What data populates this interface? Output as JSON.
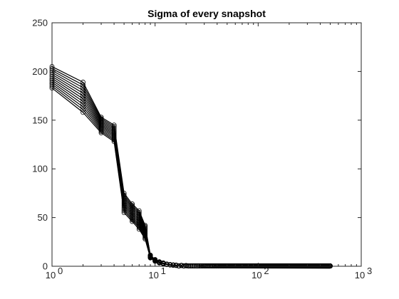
{
  "chart_data": {
    "type": "line",
    "title": "Sigma of every snapshot",
    "xlabel": "",
    "ylabel": "",
    "xscale": "log",
    "xlim": [
      1,
      1000
    ],
    "ylim": [
      0,
      250
    ],
    "x_ticks": [
      1,
      10,
      100,
      1000
    ],
    "x_tick_labels": [
      {
        "base": "10",
        "exp": "0"
      },
      {
        "base": "10",
        "exp": "1"
      },
      {
        "base": "10",
        "exp": "2"
      },
      {
        "base": "10",
        "exp": "3"
      }
    ],
    "y_ticks": [
      0,
      50,
      100,
      150,
      200,
      250
    ],
    "y_tick_labels": [
      "0",
      "50",
      "100",
      "150",
      "200",
      "250"
    ],
    "grid": false,
    "legend": "none",
    "box": true,
    "marker": "circle-open",
    "line_color": "#000000",
    "series_count": 12,
    "x_max": 500,
    "series_template": {
      "index": [
        1,
        2,
        3,
        4,
        5,
        6,
        7,
        8,
        9,
        10,
        11,
        12,
        13,
        14,
        15,
        16,
        18,
        20
      ],
      "sigma": [
        198,
        182,
        150,
        140,
        70,
        55,
        47,
        40,
        10,
        6,
        4,
        3,
        2,
        1.5,
        1.2,
        1,
        0.8,
        0.6
      ]
    },
    "series_spread": {
      "index": [
        1,
        2,
        3,
        4,
        5,
        6,
        7,
        8
      ],
      "min": [
        183,
        158,
        137,
        128,
        55,
        46,
        38,
        28
      ],
      "max": [
        205,
        189,
        153,
        145,
        75,
        64,
        57,
        42
      ]
    },
    "tail_value": 0.3
  }
}
